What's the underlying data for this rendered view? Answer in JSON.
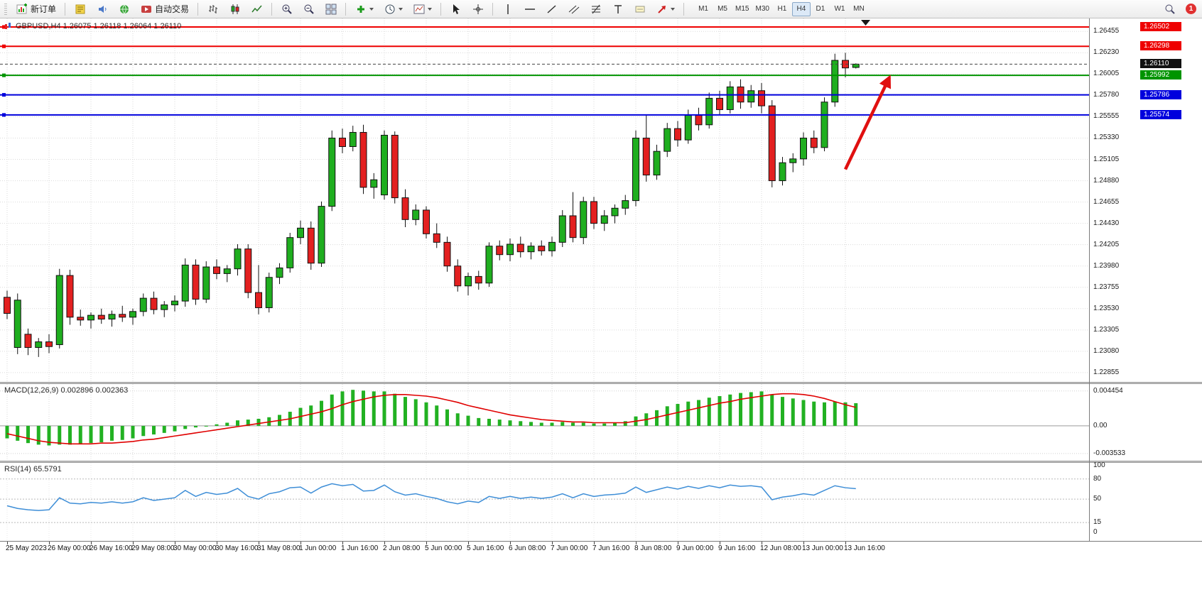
{
  "toolbar": {
    "new_order_label": "新订单",
    "autotrading_label": "自动交易",
    "timeframes": [
      "M1",
      "M5",
      "M15",
      "M30",
      "H1",
      "H4",
      "D1",
      "W1",
      "MN"
    ],
    "active_timeframe": "H4",
    "notification_badge": "1"
  },
  "main_header": {
    "text": "GBPUSD,H4 1.26075 1.26118 1.26064 1.26110"
  },
  "macd_panel": {
    "title": "MACD(12,26,9) 0.002896 0.002363",
    "axis_labels": [
      "0.004454",
      "0.00",
      "-0.003533"
    ]
  },
  "rsi_panel": {
    "title": "RSI(14) 65.5791",
    "axis_labels": [
      "100",
      "80",
      "50",
      "15",
      "0"
    ]
  },
  "price_axis_labels": [
    "1.26455",
    "1.26230",
    "1.26005",
    "1.25780",
    "1.25555",
    "1.25330",
    "1.25105",
    "1.24880",
    "1.24655",
    "1.24430",
    "1.24205",
    "1.23980",
    "1.23755",
    "1.23530",
    "1.23305",
    "1.23080",
    "1.22855"
  ],
  "time_axis_labels": [
    "25 May 2023",
    "26 May 00:00",
    "26 May 16:00",
    "29 May 08:00",
    "30 May 00:00",
    "30 May 16:00",
    "31 May 08:00",
    "1 Jun 00:00",
    "1 Jun 16:00",
    "2 Jun 08:00",
    "5 Jun 00:00",
    "5 Jun 16:00",
    "6 Jun 08:00",
    "7 Jun 00:00",
    "7 Jun 16:00",
    "8 Jun 08:00",
    "9 Jun 00:00",
    "9 Jun 16:00",
    "12 Jun 08:00",
    "13 Jun 00:00",
    "13 Jun 16:00"
  ],
  "chart_data": {
    "type": "candlestick",
    "symbol": "GBPUSD",
    "timeframe": "H4",
    "current_bar": {
      "open": 1.26075,
      "high": 1.26118,
      "low": 1.26064,
      "close": 1.2611
    },
    "ylim": [
      1.22757,
      1.26592
    ],
    "bid_line": 1.2611,
    "bid_tag": "1.26110",
    "overlays": [
      {
        "label": "1.26502",
        "price": 1.26502,
        "color": "#ee0000",
        "width": 2
      },
      {
        "label": "1.26298",
        "price": 1.26298,
        "color": "#ee0000",
        "width": 2
      },
      {
        "label": "1.25992",
        "price": 1.25992,
        "color": "#009400",
        "width": 2
      },
      {
        "label": "1.25786",
        "price": 1.25786,
        "color": "#0000dd",
        "width": 2
      },
      {
        "label": "1.25574",
        "price": 1.25574,
        "color": "#0000dd",
        "width": 2
      }
    ],
    "annotation_arrow": {
      "from_bar": 80,
      "from_price": 1.25,
      "to_bar": 84.2,
      "to_price": 1.2597,
      "color": "#e01010"
    },
    "colors": {
      "bull": "#1fae1f",
      "bear": "#e32020",
      "outline": "#111111",
      "grid": "#dadada"
    },
    "candles": [
      [
        1.2365,
        1.2372,
        1.2342,
        1.2348
      ],
      [
        1.2312,
        1.2369,
        1.2305,
        1.2362
      ],
      [
        1.2326,
        1.2332,
        1.2304,
        1.2312
      ],
      [
        1.2312,
        1.2322,
        1.2302,
        1.2318
      ],
      [
        1.2318,
        1.2326,
        1.2306,
        1.2313
      ],
      [
        1.2315,
        1.2395,
        1.2311,
        1.2388
      ],
      [
        1.2388,
        1.2394,
        1.2336,
        1.2344
      ],
      [
        1.2344,
        1.2352,
        1.2335,
        1.2341
      ],
      [
        1.2341,
        1.2349,
        1.2332,
        1.2346
      ],
      [
        1.2346,
        1.2353,
        1.2337,
        1.2342
      ],
      [
        1.2342,
        1.2351,
        1.2334,
        1.2347
      ],
      [
        1.2347,
        1.2356,
        1.2339,
        1.2344
      ],
      [
        1.2344,
        1.2353,
        1.2336,
        1.235
      ],
      [
        1.235,
        1.2369,
        1.2345,
        1.2364
      ],
      [
        1.2364,
        1.2371,
        1.2347,
        1.2352
      ],
      [
        1.2352,
        1.2361,
        1.2344,
        1.2357
      ],
      [
        1.2357,
        1.2367,
        1.235,
        1.2361
      ],
      [
        1.2361,
        1.2406,
        1.2355,
        1.2399
      ],
      [
        1.2399,
        1.2405,
        1.2357,
        1.2363
      ],
      [
        1.2363,
        1.2403,
        1.2359,
        1.2397
      ],
      [
        1.2397,
        1.2405,
        1.2384,
        1.239
      ],
      [
        1.239,
        1.2399,
        1.2381,
        1.2395
      ],
      [
        1.2395,
        1.2421,
        1.2388,
        1.2416
      ],
      [
        1.2416,
        1.2421,
        1.2364,
        1.237
      ],
      [
        1.237,
        1.2399,
        1.2347,
        1.2354
      ],
      [
        1.2354,
        1.2391,
        1.2349,
        1.2386
      ],
      [
        1.2386,
        1.2401,
        1.2379,
        1.2396
      ],
      [
        1.2396,
        1.2433,
        1.2391,
        1.2428
      ],
      [
        1.2428,
        1.2446,
        1.2421,
        1.2438
      ],
      [
        1.2438,
        1.2445,
        1.2394,
        1.2401
      ],
      [
        1.2401,
        1.2466,
        1.2397,
        1.2461
      ],
      [
        1.2461,
        1.2541,
        1.2456,
        1.2533
      ],
      [
        1.2533,
        1.2543,
        1.2517,
        1.2524
      ],
      [
        1.2524,
        1.2546,
        1.2519,
        1.2539
      ],
      [
        1.2539,
        1.2547,
        1.2474,
        1.2481
      ],
      [
        1.2481,
        1.2496,
        1.2469,
        1.2489
      ],
      [
        1.2473,
        1.2541,
        1.2468,
        1.2536
      ],
      [
        1.2536,
        1.254,
        1.2464,
        1.247
      ],
      [
        1.247,
        1.2479,
        1.2439,
        1.2447
      ],
      [
        1.2447,
        1.2463,
        1.2441,
        1.2457
      ],
      [
        1.2457,
        1.2461,
        1.2427,
        1.2432
      ],
      [
        1.2432,
        1.2443,
        1.2417,
        1.2423
      ],
      [
        1.2423,
        1.2429,
        1.2392,
        1.2398
      ],
      [
        1.2398,
        1.2405,
        1.2371,
        1.2377
      ],
      [
        1.2377,
        1.2391,
        1.2367,
        1.2387
      ],
      [
        1.2387,
        1.2393,
        1.2373,
        1.238
      ],
      [
        1.238,
        1.2423,
        1.2376,
        1.2419
      ],
      [
        1.2419,
        1.2425,
        1.2404,
        1.241
      ],
      [
        1.241,
        1.2427,
        1.2403,
        1.2421
      ],
      [
        1.2421,
        1.2429,
        1.2407,
        1.2413
      ],
      [
        1.2413,
        1.2423,
        1.2405,
        1.2419
      ],
      [
        1.2419,
        1.2425,
        1.2409,
        1.2414
      ],
      [
        1.2414,
        1.2429,
        1.2408,
        1.2423
      ],
      [
        1.2423,
        1.2457,
        1.2418,
        1.2451
      ],
      [
        1.2451,
        1.2476,
        1.2423,
        1.2428
      ],
      [
        1.2428,
        1.2471,
        1.2421,
        1.2466
      ],
      [
        1.2466,
        1.2471,
        1.2437,
        1.2443
      ],
      [
        1.2443,
        1.2457,
        1.2435,
        1.2451
      ],
      [
        1.2451,
        1.2463,
        1.2443,
        1.2459
      ],
      [
        1.2459,
        1.2473,
        1.2452,
        1.2467
      ],
      [
        1.2467,
        1.2541,
        1.2461,
        1.2533
      ],
      [
        1.2533,
        1.2557,
        1.2487,
        1.2494
      ],
      [
        1.2494,
        1.2526,
        1.2489,
        1.2519
      ],
      [
        1.2519,
        1.2549,
        1.2513,
        1.2543
      ],
      [
        1.2543,
        1.2551,
        1.2524,
        1.2531
      ],
      [
        1.2531,
        1.2563,
        1.2527,
        1.2557
      ],
      [
        1.2557,
        1.2565,
        1.2541,
        1.2547
      ],
      [
        1.2547,
        1.2581,
        1.2543,
        1.2575
      ],
      [
        1.2575,
        1.2583,
        1.2557,
        1.2563
      ],
      [
        1.2563,
        1.2593,
        1.2559,
        1.2587
      ],
      [
        1.2587,
        1.2595,
        1.2564,
        1.2571
      ],
      [
        1.2571,
        1.2589,
        1.2565,
        1.2583
      ],
      [
        1.2583,
        1.2591,
        1.2559,
        1.2567
      ],
      [
        1.2567,
        1.2573,
        1.2481,
        1.2488
      ],
      [
        1.2488,
        1.2513,
        1.2483,
        1.2507
      ],
      [
        1.2507,
        1.2517,
        1.2497,
        1.2511
      ],
      [
        1.2511,
        1.2539,
        1.2504,
        1.2533
      ],
      [
        1.2533,
        1.2541,
        1.2517,
        1.2523
      ],
      [
        1.2523,
        1.2576,
        1.2519,
        1.2571
      ],
      [
        1.2571,
        1.2622,
        1.2566,
        1.2615
      ],
      [
        1.2615,
        1.2623,
        1.2597,
        1.2607
      ],
      [
        1.26075,
        1.26118,
        1.26064,
        1.2611
      ]
    ],
    "macd": {
      "params": "12,26,9",
      "main_value": 0.002896,
      "signal_value": 0.002363,
      "ylim": [
        -0.00445,
        0.00534
      ],
      "grid_values": [
        0.004454,
        0,
        -0.003533
      ],
      "colors": {
        "histogram": "#22b122",
        "signal": "#e00000"
      },
      "histogram": [
        -0.0016,
        -0.0019,
        -0.0022,
        -0.0024,
        -0.0025,
        -0.0024,
        -0.0024,
        -0.0023,
        -0.0022,
        -0.0021,
        -0.0019,
        -0.0018,
        -0.0016,
        -0.0013,
        -0.0011,
        -0.0009,
        -0.0007,
        -0.0004,
        -0.0002,
        0.0,
        0.0002,
        0.0004,
        0.0007,
        0.0008,
        0.0009,
        0.0011,
        0.0014,
        0.0018,
        0.0023,
        0.0026,
        0.0032,
        0.004,
        0.0044,
        0.0046,
        0.0045,
        0.0044,
        0.0044,
        0.0041,
        0.0037,
        0.0034,
        0.003,
        0.0026,
        0.0021,
        0.0016,
        0.0013,
        0.001,
        0.0009,
        0.0008,
        0.0007,
        0.0006,
        0.0005,
        0.0004,
        0.0004,
        0.0005,
        0.0004,
        0.0004,
        0.0003,
        0.0003,
        0.0004,
        0.0006,
        0.0012,
        0.0016,
        0.002,
        0.0025,
        0.0028,
        0.0031,
        0.0033,
        0.0036,
        0.0038,
        0.004,
        0.0042,
        0.0043,
        0.0044,
        0.004,
        0.0037,
        0.0035,
        0.0033,
        0.0031,
        0.003,
        0.0031,
        0.003,
        0.002896
      ],
      "signal": [
        -0.001,
        -0.0013,
        -0.0016,
        -0.0019,
        -0.0021,
        -0.0022,
        -0.0023,
        -0.0023,
        -0.0023,
        -0.0022,
        -0.0022,
        -0.0021,
        -0.002,
        -0.0018,
        -0.0017,
        -0.0015,
        -0.0013,
        -0.0011,
        -0.0009,
        -0.0007,
        -0.0005,
        -0.0003,
        -0.0001,
        0.0001,
        0.0003,
        0.0005,
        0.0007,
        0.0009,
        0.0012,
        0.0015,
        0.0018,
        0.0022,
        0.0027,
        0.0031,
        0.0034,
        0.0037,
        0.0039,
        0.004,
        0.004,
        0.0039,
        0.0038,
        0.0036,
        0.0033,
        0.003,
        0.0026,
        0.0023,
        0.002,
        0.0017,
        0.0014,
        0.0012,
        0.001,
        0.0008,
        0.0007,
        0.0006,
        0.0005,
        0.0005,
        0.0004,
        0.0004,
        0.0004,
        0.0004,
        0.0006,
        0.0008,
        0.0011,
        0.0014,
        0.0017,
        0.002,
        0.0023,
        0.0026,
        0.0029,
        0.0031,
        0.0034,
        0.0036,
        0.0038,
        0.004,
        0.0041,
        0.0041,
        0.004,
        0.0038,
        0.0035,
        0.0031,
        0.0027,
        0.002363
      ]
    },
    "rsi": {
      "period": 14,
      "value": 65.5791,
      "levels": [
        80,
        50,
        15
      ],
      "scale_marks": [
        100,
        80,
        50,
        15,
        0
      ],
      "ylim": [
        -12.5,
        104.2
      ],
      "color": "#3e8ed7",
      "series": [
        40,
        36,
        34,
        33,
        34,
        52,
        44,
        43,
        45,
        44,
        46,
        44,
        46,
        52,
        48,
        50,
        52,
        63,
        54,
        60,
        57,
        59,
        66,
        54,
        50,
        58,
        61,
        67,
        68,
        59,
        68,
        73,
        70,
        72,
        62,
        63,
        71,
        61,
        56,
        58,
        54,
        51,
        46,
        43,
        47,
        45,
        54,
        51,
        54,
        51,
        53,
        51,
        53,
        58,
        52,
        58,
        54,
        56,
        57,
        59,
        68,
        60,
        64,
        68,
        65,
        69,
        66,
        70,
        67,
        71,
        69,
        70,
        68,
        49,
        53,
        55,
        58,
        56,
        63,
        70,
        67,
        65.5791
      ]
    }
  }
}
